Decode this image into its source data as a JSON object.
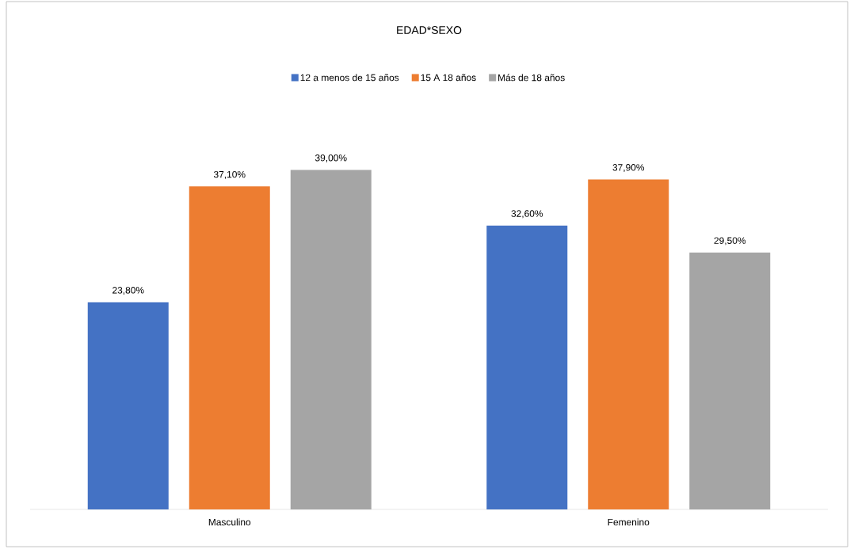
{
  "chart_data": {
    "type": "bar",
    "title": "EDAD*SEXO",
    "categories": [
      "Masculino",
      "Femenino"
    ],
    "series": [
      {
        "name": "12 a menos de 15 años",
        "color": "#4472c4",
        "values": [
          23.8,
          32.6
        ],
        "value_labels": [
          "23,80%",
          "32,60%"
        ]
      },
      {
        "name": "15 A 18 años",
        "color": "#ed7d31",
        "values": [
          37.1,
          37.9
        ],
        "value_labels": [
          "37,10%",
          "37,90%"
        ]
      },
      {
        "name": "Más de 18 años",
        "color": "#a5a5a5",
        "values": [
          39.0,
          29.5
        ],
        "value_labels": [
          "39,00%",
          "29,50%"
        ]
      }
    ],
    "legend": "top"
  }
}
